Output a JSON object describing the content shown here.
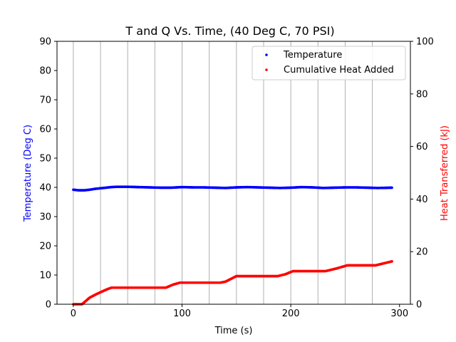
{
  "chart_data": {
    "type": "scatter",
    "title": "T and Q Vs. Time, (40 Deg C, 70 PSI)",
    "xlabel": "Time (s)",
    "ylabel_left": "Temperature (Deg C)",
    "ylabel_right": "Heat Transferred (kJ)",
    "xlim": [
      -15,
      310
    ],
    "ylim_left": [
      0,
      90
    ],
    "ylim_right": [
      0,
      100
    ],
    "x_ticks": [
      0,
      100,
      200,
      300
    ],
    "y_left_ticks": [
      0,
      10,
      20,
      30,
      40,
      50,
      60,
      70,
      80,
      90
    ],
    "y_right_ticks": [
      0,
      20,
      40,
      60,
      80,
      100
    ],
    "vertical_grid": [
      0,
      25,
      50,
      75,
      100,
      125,
      150,
      175,
      200,
      225,
      250,
      275
    ],
    "legend_position": "top-right",
    "colors": {
      "left_axis_label": "#0000ff",
      "right_axis_label": "#ff0000",
      "grid": "#b0b0b0"
    },
    "series": [
      {
        "name": "Temperature",
        "color": "#0000ff",
        "axis": "left",
        "points": [
          [
            0,
            39.2
          ],
          [
            5,
            39.0
          ],
          [
            10,
            39.0
          ],
          [
            15,
            39.2
          ],
          [
            20,
            39.5
          ],
          [
            25,
            39.7
          ],
          [
            30,
            39.9
          ],
          [
            35,
            40.1
          ],
          [
            40,
            40.2
          ],
          [
            50,
            40.2
          ],
          [
            60,
            40.1
          ],
          [
            70,
            40.0
          ],
          [
            80,
            39.9
          ],
          [
            90,
            39.9
          ],
          [
            100,
            40.1
          ],
          [
            110,
            40.0
          ],
          [
            120,
            40.0
          ],
          [
            130,
            39.9
          ],
          [
            140,
            39.8
          ],
          [
            150,
            40.0
          ],
          [
            160,
            40.1
          ],
          [
            170,
            40.0
          ],
          [
            180,
            39.9
          ],
          [
            190,
            39.8
          ],
          [
            200,
            39.9
          ],
          [
            210,
            40.1
          ],
          [
            220,
            40.0
          ],
          [
            230,
            39.8
          ],
          [
            240,
            39.9
          ],
          [
            250,
            40.0
          ],
          [
            260,
            40.0
          ],
          [
            270,
            39.9
          ],
          [
            280,
            39.8
          ],
          [
            293,
            39.9
          ]
        ]
      },
      {
        "name": "Cumulative Heat Added",
        "color": "#ff0000",
        "axis": "right",
        "points": [
          [
            0,
            0
          ],
          [
            8,
            0
          ],
          [
            15,
            2.5
          ],
          [
            22,
            4
          ],
          [
            30,
            5.5
          ],
          [
            35,
            6.3
          ],
          [
            85,
            6.3
          ],
          [
            92,
            7.5
          ],
          [
            98,
            8.2
          ],
          [
            135,
            8.2
          ],
          [
            140,
            8.6
          ],
          [
            150,
            10.7
          ],
          [
            188,
            10.7
          ],
          [
            195,
            11.4
          ],
          [
            202,
            12.6
          ],
          [
            232,
            12.6
          ],
          [
            242,
            13.6
          ],
          [
            252,
            14.8
          ],
          [
            278,
            14.8
          ],
          [
            285,
            15.5
          ],
          [
            293,
            16.3
          ]
        ]
      }
    ]
  }
}
